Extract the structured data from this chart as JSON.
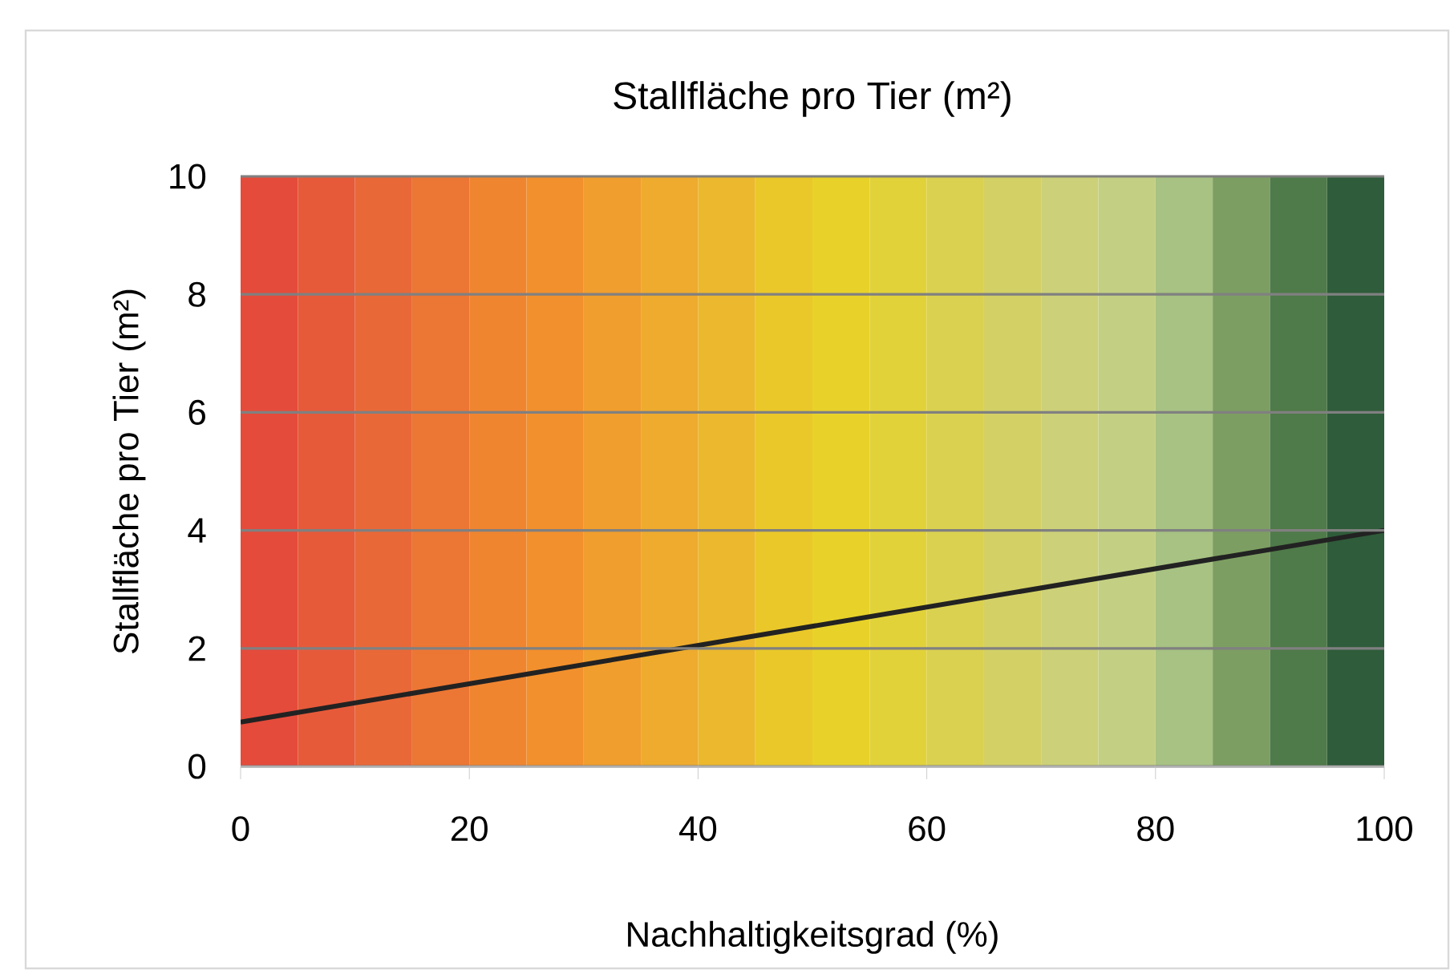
{
  "chart_data": {
    "type": "line",
    "title": "Stallfläche pro Tier (m²)",
    "xlabel": "Nachhaltigkeitsgrad (%)",
    "ylabel": "Stallfläche pro Tier (m²)",
    "x": [
      0,
      100
    ],
    "series": [
      {
        "color": "#222222",
        "values": [
          0.75,
          4
        ]
      }
    ],
    "xlim": [
      0,
      100
    ],
    "ylim": [
      0,
      10
    ],
    "xticks": [
      0,
      20,
      40,
      60,
      80,
      100
    ],
    "yticks": [
      0,
      2,
      4,
      6,
      8,
      10
    ],
    "grid": "y",
    "marker": "none",
    "line_style": "solid",
    "bands": [
      {
        "axis": "x",
        "from": 0,
        "to": 5,
        "color": "#e44b3b"
      },
      {
        "axis": "x",
        "from": 5,
        "to": 10,
        "color": "#e65a3a"
      },
      {
        "axis": "x",
        "from": 10,
        "to": 15,
        "color": "#e96838"
      },
      {
        "axis": "x",
        "from": 15,
        "to": 20,
        "color": "#ec7634"
      },
      {
        "axis": "x",
        "from": 20,
        "to": 25,
        "color": "#f08530"
      },
      {
        "axis": "x",
        "from": 25,
        "to": 30,
        "color": "#f2902d"
      },
      {
        "axis": "x",
        "from": 30,
        "to": 35,
        "color": "#f09e2e"
      },
      {
        "axis": "x",
        "from": 35,
        "to": 40,
        "color": "#eeab2e"
      },
      {
        "axis": "x",
        "from": 40,
        "to": 45,
        "color": "#ecb82d"
      },
      {
        "axis": "x",
        "from": 45,
        "to": 50,
        "color": "#eac82a"
      },
      {
        "axis": "x",
        "from": 50,
        "to": 55,
        "color": "#e8d22a"
      },
      {
        "axis": "x",
        "from": 55,
        "to": 60,
        "color": "#e2d23a"
      },
      {
        "axis": "x",
        "from": 60,
        "to": 65,
        "color": "#dad150"
      },
      {
        "axis": "x",
        "from": 65,
        "to": 70,
        "color": "#d3d066"
      },
      {
        "axis": "x",
        "from": 70,
        "to": 75,
        "color": "#ccd078"
      },
      {
        "axis": "x",
        "from": 75,
        "to": 80,
        "color": "#c3d084"
      },
      {
        "axis": "x",
        "from": 80,
        "to": 85,
        "color": "#a7c283"
      },
      {
        "axis": "x",
        "from": 85,
        "to": 90,
        "color": "#7d9e62"
      },
      {
        "axis": "x",
        "from": 90,
        "to": 95,
        "color": "#4f7a49"
      },
      {
        "axis": "x",
        "from": 95,
        "to": 100,
        "color": "#2f5c3a"
      }
    ]
  }
}
